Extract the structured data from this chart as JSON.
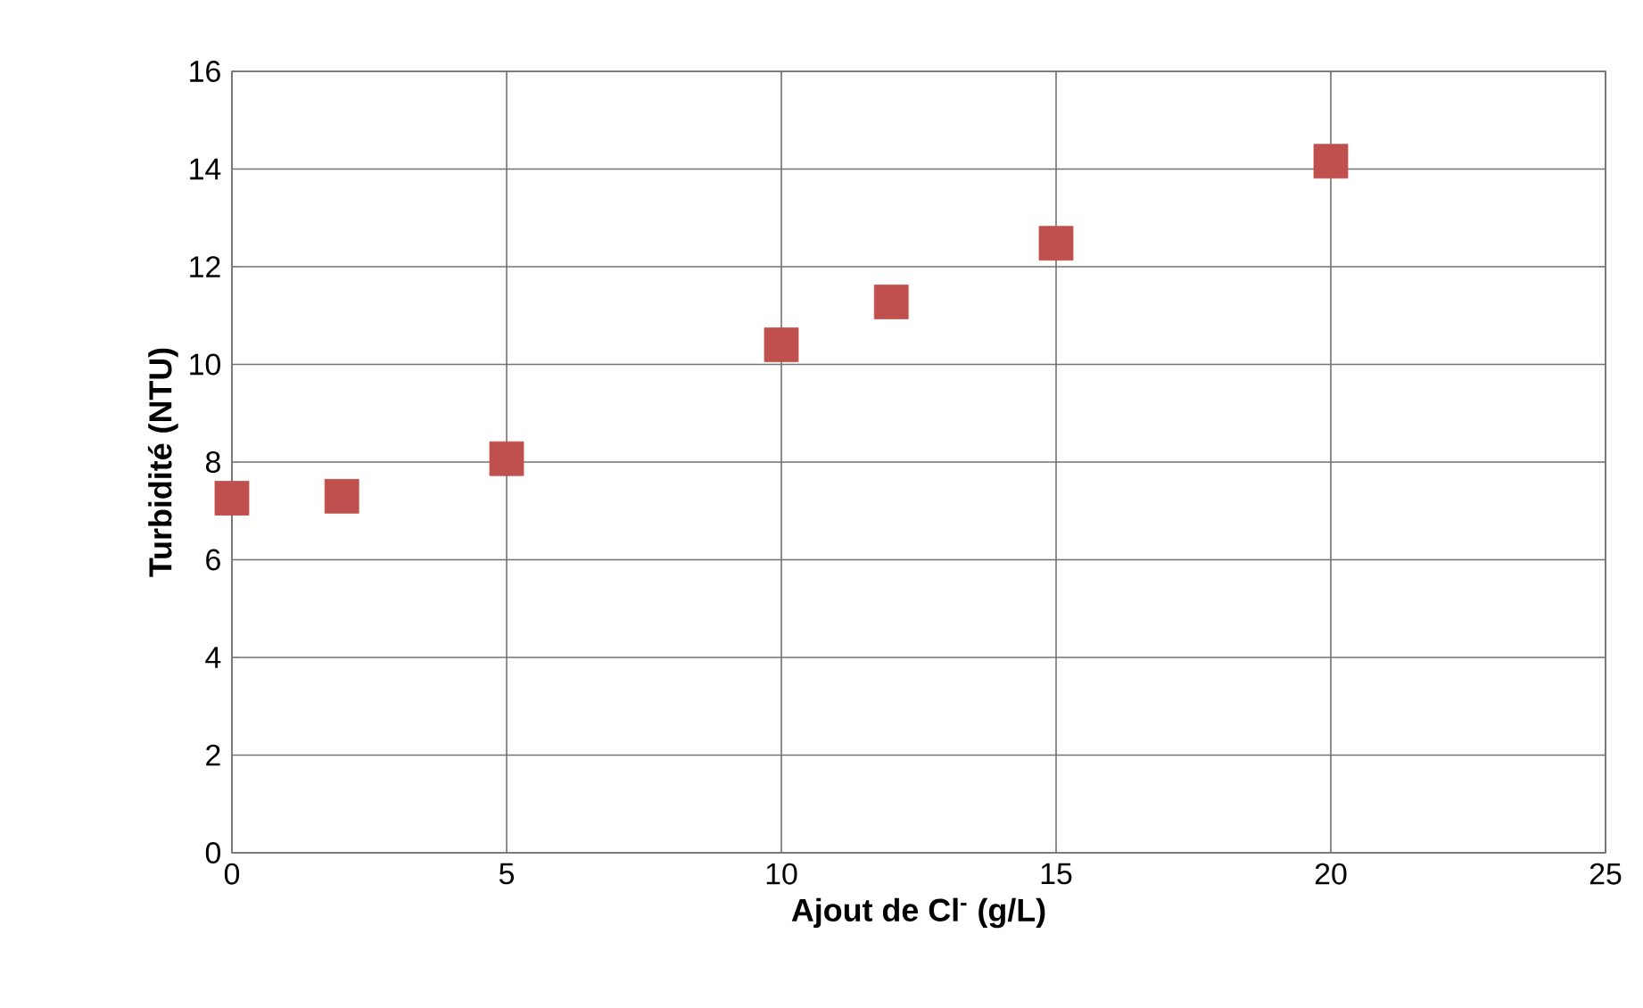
{
  "chart_data": {
    "type": "scatter",
    "xlabel": "Ajout de Cl$^{-}$ (g/L)",
    "ylabel": "Turbidité (NTU)",
    "x": [
      0,
      2,
      5,
      10,
      12,
      15,
      20
    ],
    "series": [
      {
        "color": "#c0504d",
        "values": [
          7.26,
          7.3,
          8.07,
          10.4,
          11.28,
          12.48,
          14.16
        ]
      }
    ],
    "xlim": [
      0,
      25
    ],
    "xticks": [
      0,
      5,
      10,
      15,
      20,
      25
    ],
    "ylim": [
      0,
      16
    ],
    "yticks": [
      0,
      2,
      4,
      6,
      8,
      10,
      12,
      14,
      16
    ],
    "grid": true,
    "marker": "square"
  }
}
